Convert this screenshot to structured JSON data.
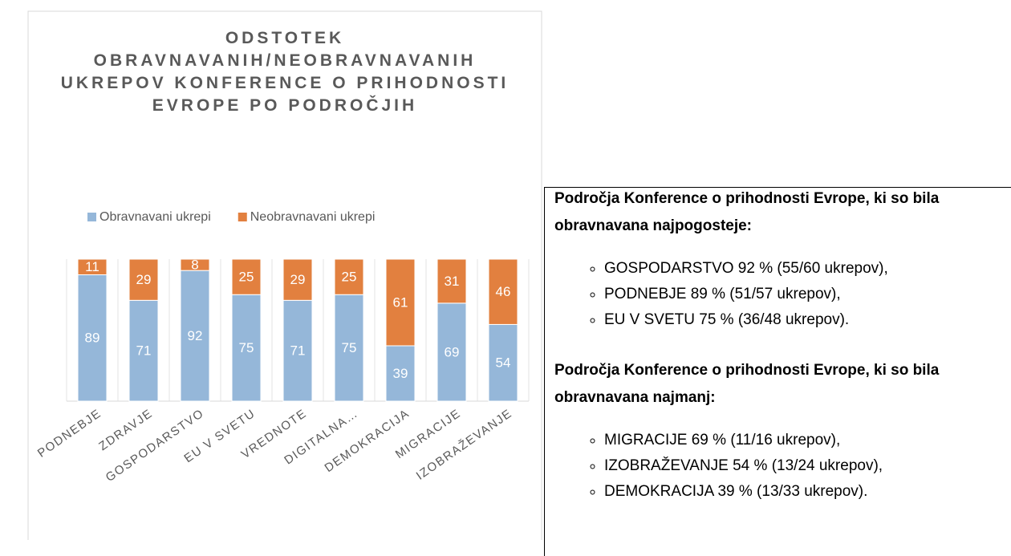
{
  "chart_data": {
    "type": "stacked_bar",
    "title": "ODSTOTEK OBRAVNAVANIH/NEOBRAVNAVANIH UKREPOV KONFERENCE O PRIHODNOSTI EVROPE PO PODROČJIH",
    "categories": [
      "PODNEBJE",
      "ZDRAVJE",
      "GOSPODARSTVO",
      "EU V SVETU",
      "VREDNOTE",
      "DIGITALNA…",
      "DEMOKRACIJA",
      "MIGRACIJE",
      "IZOBRAŽEVANJE"
    ],
    "series": [
      {
        "name": "Obravnavani ukrepi",
        "color": "#95b7d9",
        "values": [
          89,
          71,
          92,
          75,
          71,
          75,
          39,
          69,
          54
        ]
      },
      {
        "name": "Neobravnavani ukrepi",
        "color": "#e2803f",
        "values": [
          11,
          29,
          8,
          25,
          29,
          25,
          61,
          31,
          46
        ]
      }
    ],
    "ylim": [
      0,
      100
    ],
    "legend": "top"
  },
  "text_box": {
    "sections": [
      {
        "heading": "Področja Konference o prihodnosti Evrope, ki so bila obravnavana najpogosteje:",
        "items": [
          "GOSPODARSTVO 92 % (55/60 ukrepov),",
          "PODNEBJE 89 % (51/57 ukrepov),",
          "EU V SVETU 75 % (36/48 ukrepov)."
        ]
      },
      {
        "heading": "Področja Konference o prihodnosti Evrope, ki so bila obravnavana najmanj:",
        "items": [
          "MIGRACIJE 69 % (11/16 ukrepov),",
          "IZOBRAŽEVANJE 54 % (13/24 ukrepov),",
          "DEMOKRACIJA 39 % (13/33 ukrepov)."
        ]
      }
    ]
  }
}
